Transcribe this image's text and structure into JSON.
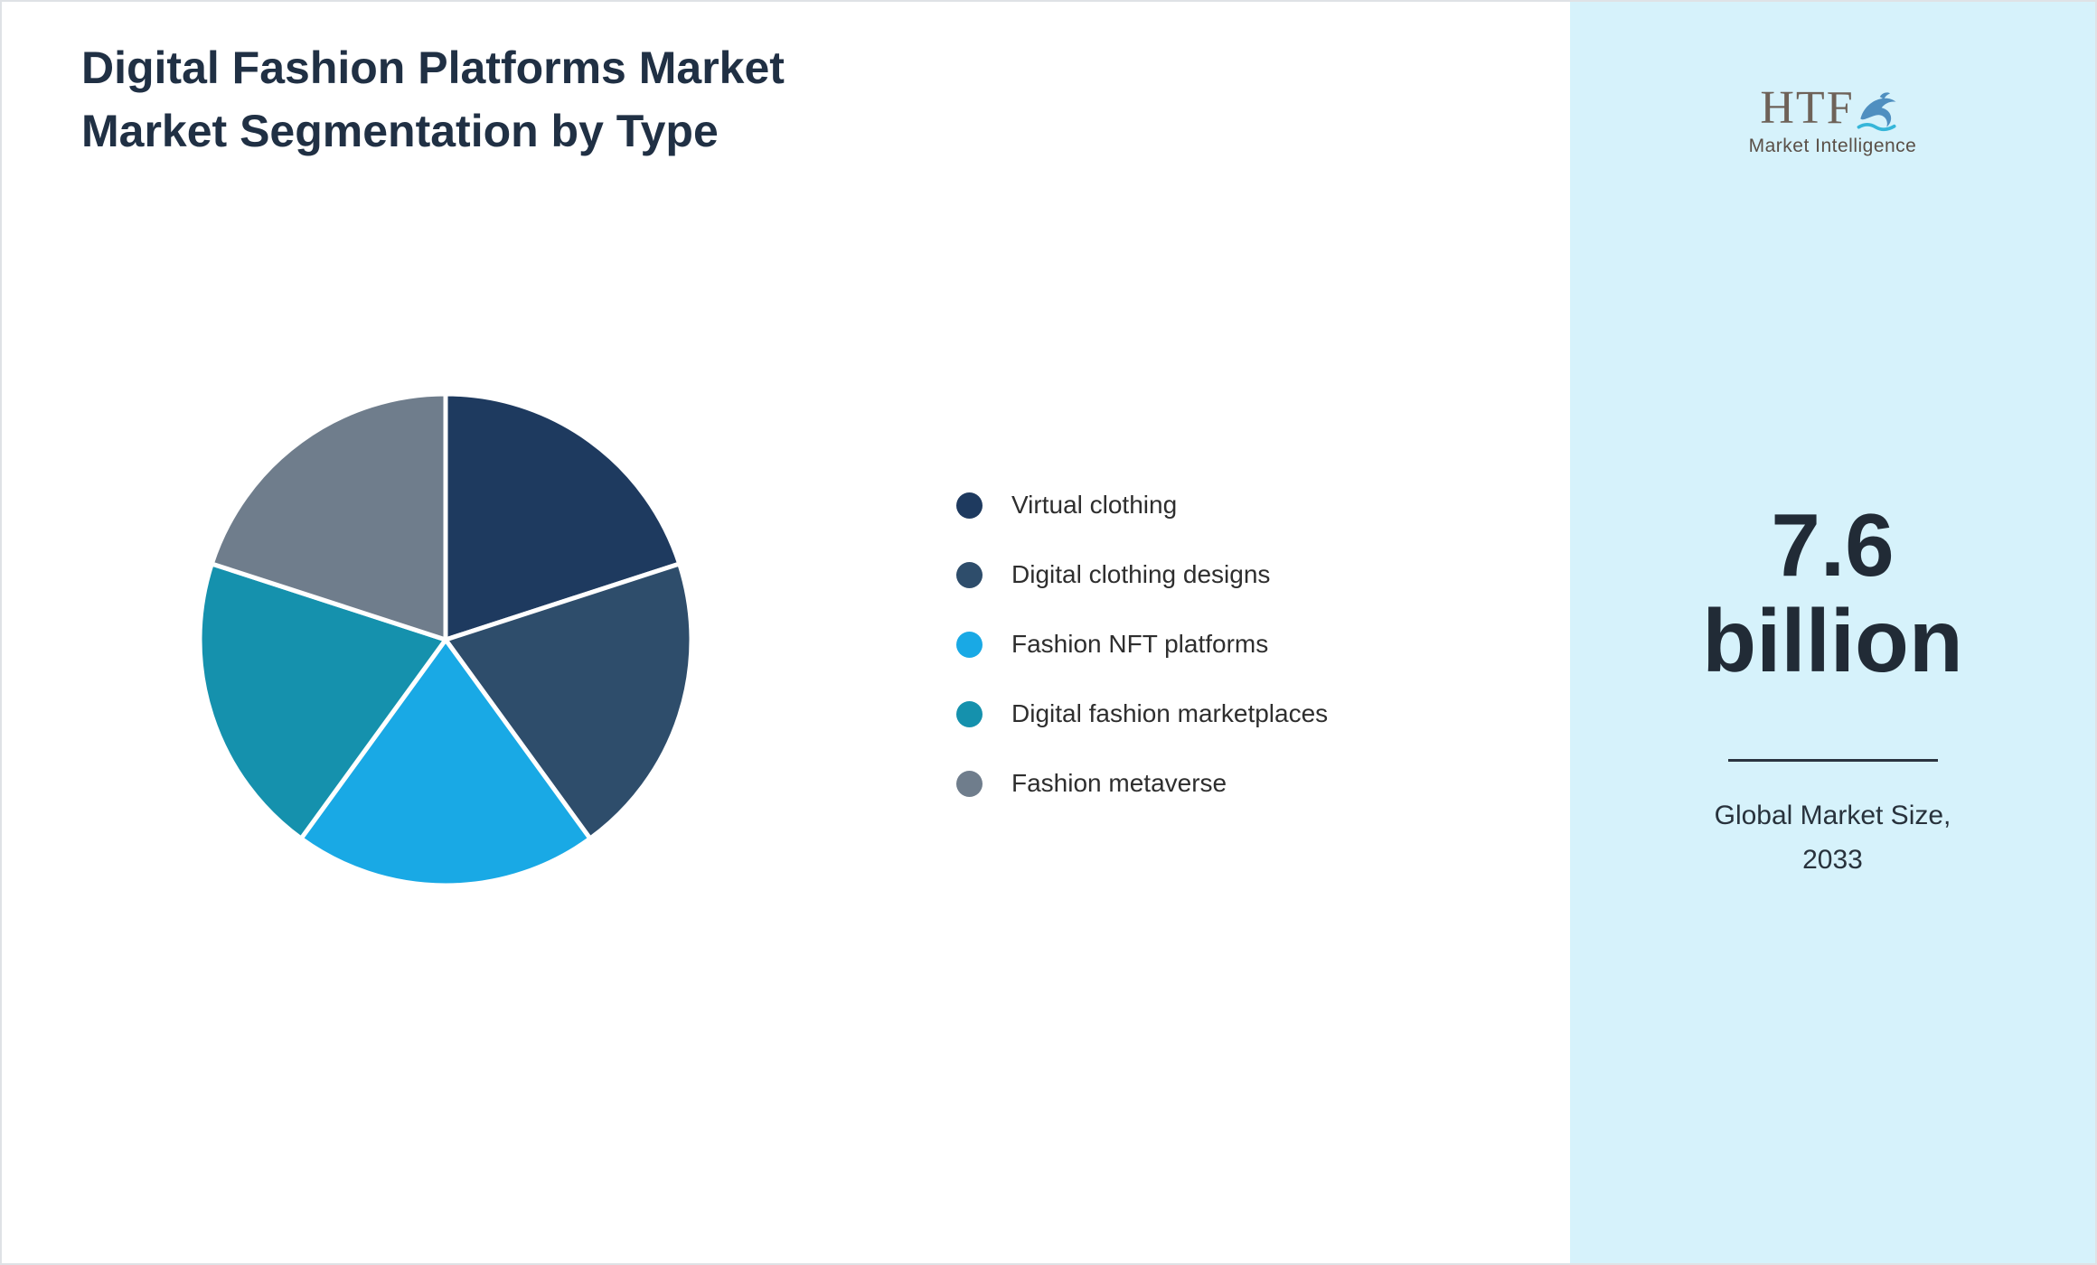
{
  "title": {
    "line1": "Digital Fashion Platforms Market",
    "line2": "Market Segmentation by Type"
  },
  "chart_data": {
    "type": "pie",
    "title": "Digital Fashion Platforms Market — Market Segmentation by Type",
    "legend_position": "right",
    "start_angle_deg": -90,
    "direction": "clockwise",
    "values_are": "percent_estimated",
    "segments": [
      {
        "label": "Virtual clothing",
        "value": 20,
        "color": "#1e3a5f"
      },
      {
        "label": "Digital clothing designs",
        "value": 20,
        "color": "#2e4d6b"
      },
      {
        "label": "Fashion NFT platforms",
        "value": 20,
        "color": "#19a9e5"
      },
      {
        "label": "Digital fashion marketplaces",
        "value": 20,
        "color": "#1591ad"
      },
      {
        "label": "Fashion metaverse",
        "value": 20,
        "color": "#6f7d8c"
      }
    ],
    "slice_gap_color": "#ffffff"
  },
  "sidebar": {
    "background": "#d6f2fb",
    "logo": {
      "text": "HTF",
      "subtext": "Market Intelligence"
    },
    "market_size_value": "7.6",
    "market_size_unit": "billion",
    "caption_line1": "Global Market Size,",
    "caption_line2": "2033"
  },
  "colors": {
    "title_text": "#203044",
    "big_number_text": "#212b36",
    "divider": "#2b3440",
    "page_background": "#ffffff"
  }
}
